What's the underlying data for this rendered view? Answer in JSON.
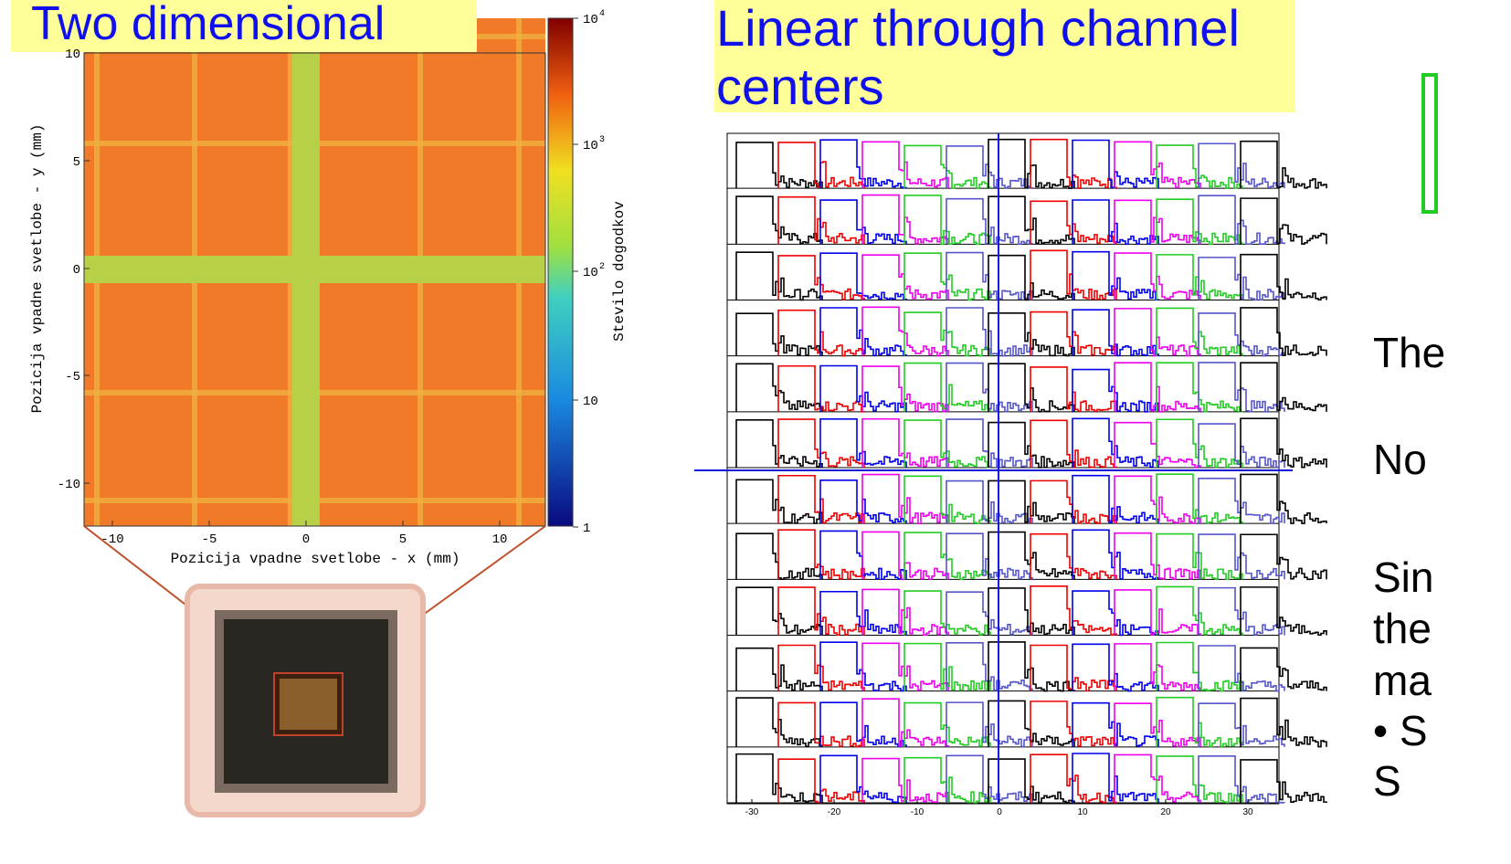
{
  "left": {
    "heading": "Two dimensional",
    "figure": {
      "x_label": "Pozicija vpadne svetlobe - x (mm)",
      "y_label": "Pozicija vpadne svetlobe - y (mm)",
      "colorbar_label": "Stevilo dogodkov",
      "x_ticks": [
        "-10",
        "-5",
        "0",
        "5",
        "10"
      ],
      "y_ticks": [
        "10",
        "5",
        "0",
        "-5",
        "-10"
      ],
      "colorbar_ticks": [
        {
          "base": "10",
          "exp": "4"
        },
        {
          "base": "10",
          "exp": "3"
        },
        {
          "base": "10",
          "exp": "2"
        },
        {
          "base": "10"
        },
        {
          "base": "1"
        }
      ]
    }
  },
  "middle": {
    "heading": [
      "Linear through channel",
      "centers"
    ],
    "figure": {
      "x_ticks": [
        "-30",
        "-20",
        "-10",
        "0",
        "10",
        "20",
        "30"
      ]
    }
  },
  "right": {
    "lines": [
      "The",
      "No",
      "Sin",
      "the",
      "ma",
      "• S",
      "S"
    ]
  }
}
